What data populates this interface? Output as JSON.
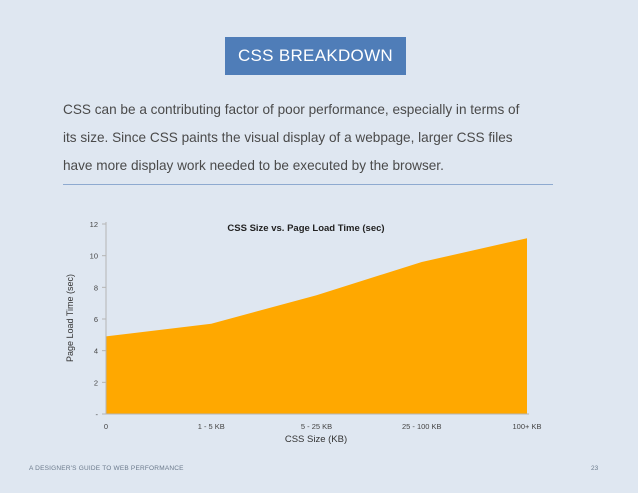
{
  "slide": {
    "badge": "CSS BREAKDOWN",
    "intro_lines": [
      "CSS can be a contributing factor of poor performance, especially in terms of",
      "its size. Since CSS paints the visual display of a webpage, larger CSS files",
      "have more display work needed to be executed by the browser."
    ],
    "footer_left": "A DESIGNER'S GUIDE TO WEB PERFORMANCE",
    "page_number": "23"
  },
  "colors": {
    "badge_bg": "#4f7db8",
    "area_fill": "#ffa800",
    "background": "#dfe7f1"
  },
  "chart_data": {
    "type": "area",
    "title": "CSS Size vs. Page Load Time (sec)",
    "xlabel": "CSS Size (KB)",
    "ylabel": "Page Load Time (sec)",
    "categories": [
      "0",
      "1 - 5 KB",
      "5 - 25 KB",
      "25 - 100 KB",
      "100+ KB"
    ],
    "values": [
      4.9,
      5.7,
      7.5,
      9.6,
      11.1
    ],
    "ylim": [
      0,
      12
    ],
    "yticks": [
      0,
      2,
      4,
      6,
      8,
      10,
      12
    ],
    "ytick_labels": [
      "-",
      "2",
      "4",
      "6",
      "8",
      "10",
      "12"
    ],
    "grid": false,
    "legend": "none"
  }
}
